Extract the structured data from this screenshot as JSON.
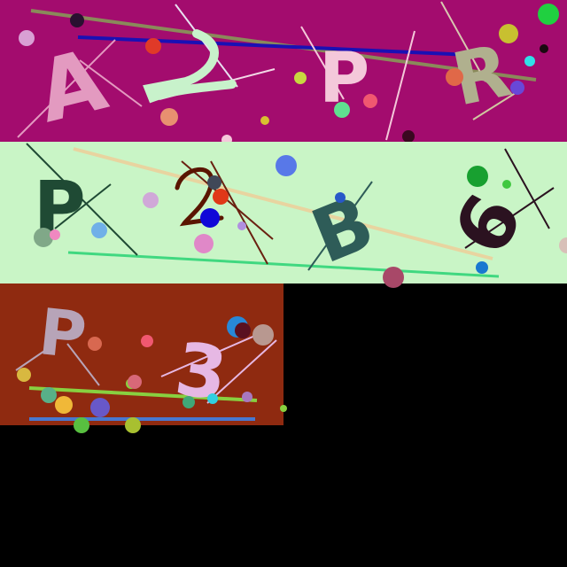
{
  "background": "#000000",
  "panels": [
    {
      "name": "panel-top",
      "background": "#a30c6e",
      "glyphs": [
        {
          "char": "A",
          "color": "#e39ac0"
        },
        {
          "char": "2",
          "color": "#c8f2cb"
        },
        {
          "char": "P",
          "color": "#f4c8da"
        },
        {
          "char": "R",
          "color": "#b0b08e"
        }
      ]
    },
    {
      "name": "panel-middle",
      "background": "#c9f5c6",
      "glyphs": [
        {
          "char": "P",
          "color": "#1f4a34"
        },
        {
          "char": "2",
          "color": "#5a1500"
        },
        {
          "char": "B",
          "color": "#2e5c58"
        },
        {
          "char": "6",
          "color": "#2b1220"
        }
      ]
    },
    {
      "name": "panel-bottom",
      "background": "#8f2a10",
      "glyphs": [
        {
          "char": "P",
          "color": "#b7a4b8"
        },
        {
          "char": "3",
          "color": "#e6b8e4"
        }
      ]
    }
  ]
}
